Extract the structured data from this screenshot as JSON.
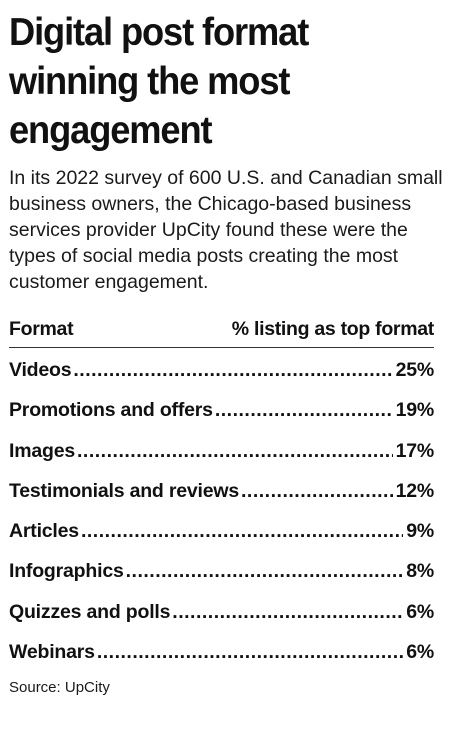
{
  "title": "Digital post format winning the most engagement",
  "subtitle": "In its 2022 survey of 600 U.S. and Canadian small business owners, the Chicago-based business services provider UpCity found these were the types of social media posts creating the most customer engagement.",
  "source": "Source: UpCity",
  "chart_data": {
    "type": "table",
    "columns": [
      "Format",
      "% listing as top format"
    ],
    "rows": [
      {
        "label": "Videos",
        "value": 25,
        "display": "25%"
      },
      {
        "label": "Promotions and offers",
        "value": 19,
        "display": "19%"
      },
      {
        "label": "Images",
        "value": 17,
        "display": "17%"
      },
      {
        "label": "Testimonials and reviews",
        "value": 12,
        "display": "12%"
      },
      {
        "label": "Articles",
        "value": 9,
        "display": "9%"
      },
      {
        "label": "Infographics",
        "value": 8,
        "display": "8%"
      },
      {
        "label": "Quizzes and polls",
        "value": 6,
        "display": "6%"
      },
      {
        "label": "Webinars",
        "value": 6,
        "display": "6%"
      }
    ]
  }
}
